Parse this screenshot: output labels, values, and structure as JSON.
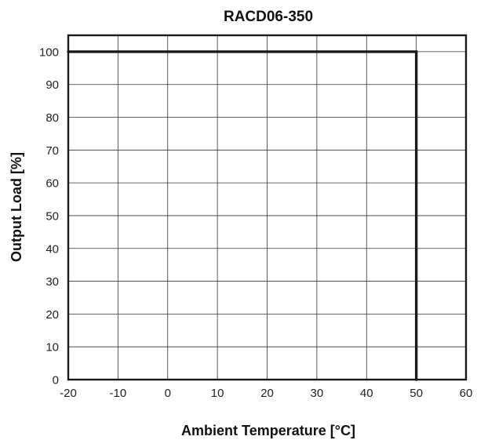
{
  "chart_data": {
    "type": "line",
    "title": "RACD06-350",
    "xlabel": "Ambient Temperature [°C]",
    "ylabel": "Output Load [%]",
    "xlim": [
      -20,
      60
    ],
    "ylim": [
      0,
      105
    ],
    "xticks": [
      -20,
      -10,
      0,
      10,
      20,
      30,
      40,
      50,
      60
    ],
    "yticks": [
      0,
      10,
      20,
      30,
      40,
      50,
      60,
      70,
      80,
      90,
      100
    ],
    "grid": true,
    "series": [
      {
        "x": [
          -20,
          50,
          50
        ],
        "y": [
          100,
          100,
          0
        ]
      }
    ]
  }
}
